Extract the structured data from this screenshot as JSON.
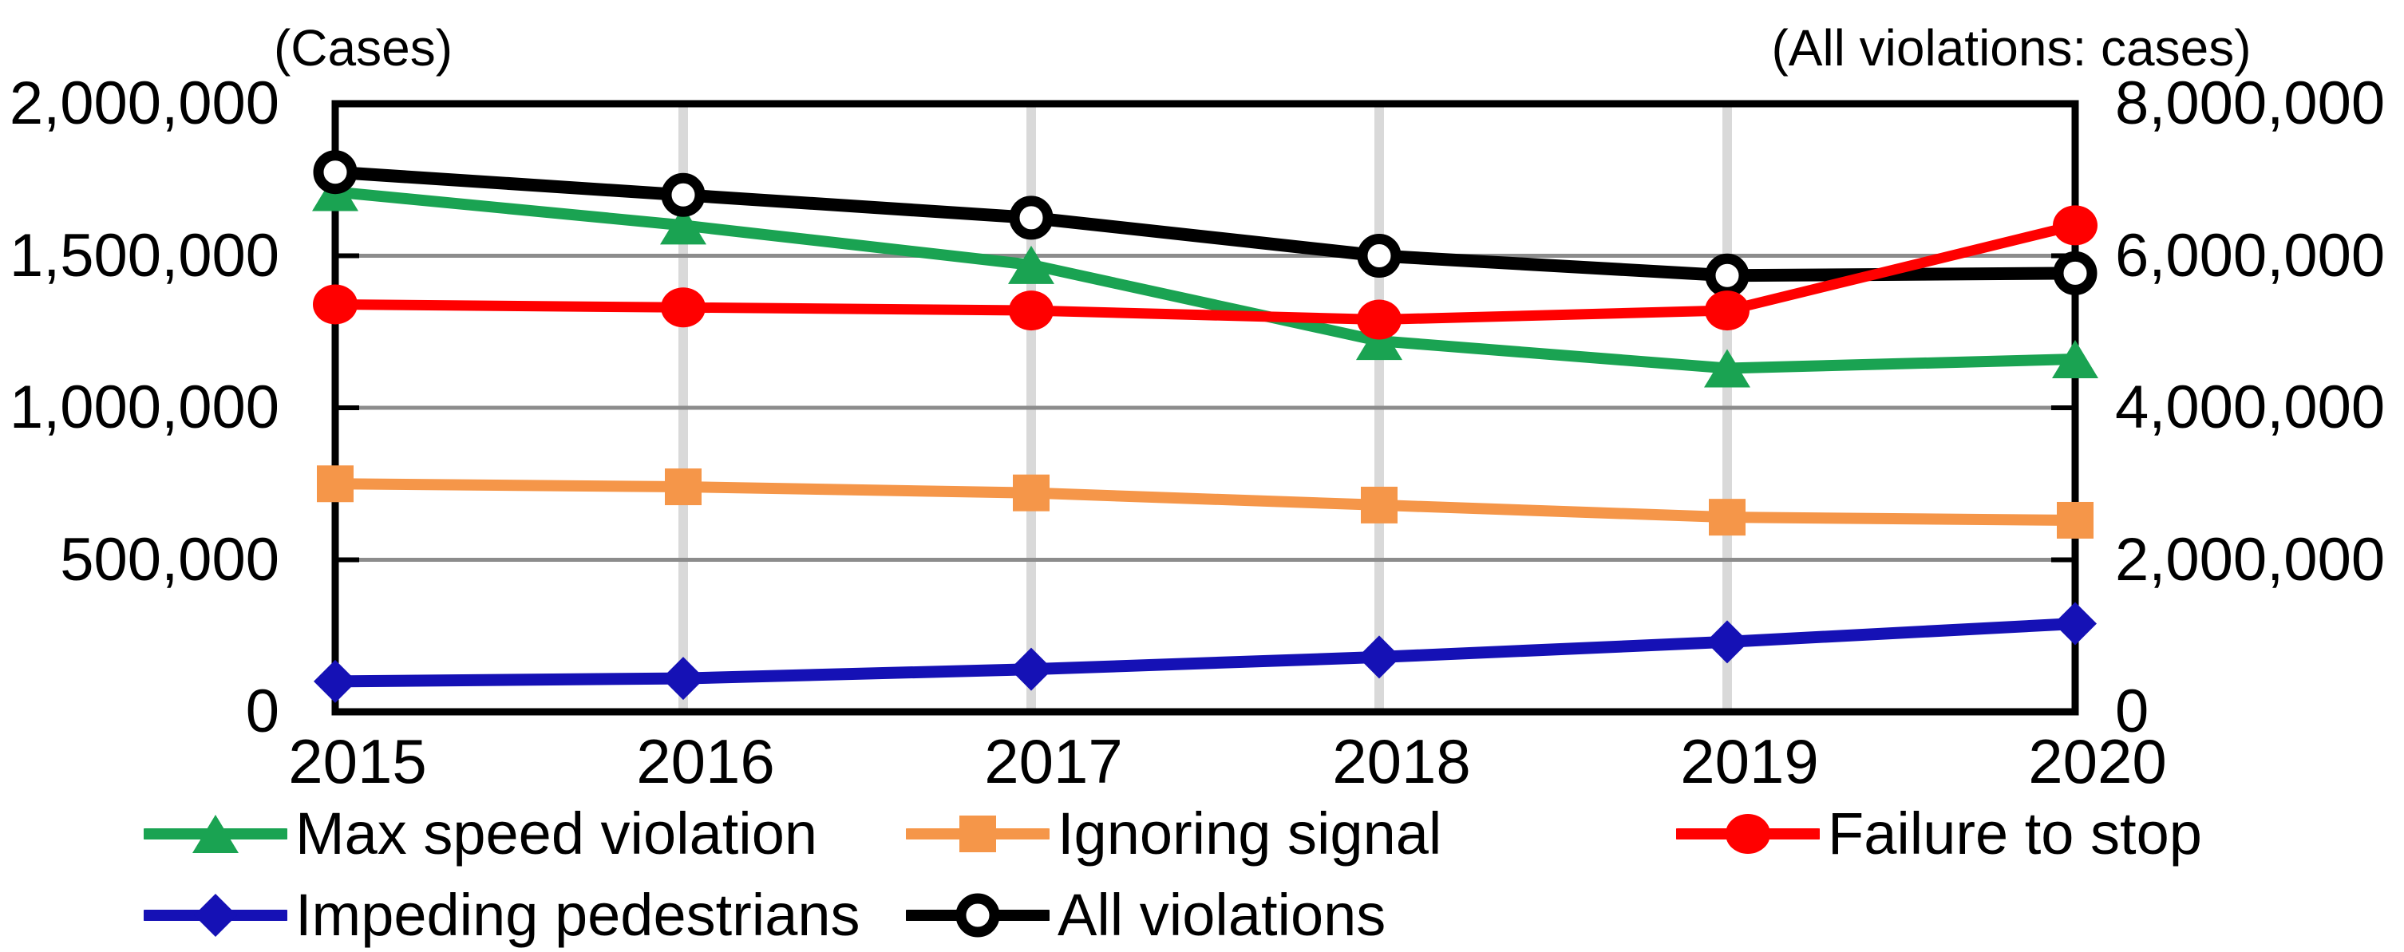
{
  "chart_data": {
    "type": "line",
    "categories": [
      "2015",
      "2016",
      "2017",
      "2018",
      "2019",
      "2020"
    ],
    "left_axis": {
      "title": "(Cases)",
      "min": 0,
      "max": 2000000,
      "tick_interval": 500000,
      "tick_labels": [
        "2,000,000",
        "1,500,000",
        "1,000,000",
        "500,000",
        "0"
      ]
    },
    "right_axis": {
      "title": "(All violations: cases)",
      "min": 0,
      "max": 8000000,
      "tick_interval": 2000000,
      "tick_labels": [
        "8,000,000",
        "6,000,000",
        "4,000,000",
        "2,000,000",
        "0"
      ]
    },
    "series": [
      {
        "name": "Max speed violation",
        "axis": "left",
        "color": "#1AA352",
        "marker": "triangle",
        "values": [
          1710000,
          1600000,
          1470000,
          1220000,
          1130000,
          1160000
        ]
      },
      {
        "name": "Ignoring signal",
        "axis": "left",
        "color": "#F59649",
        "marker": "square",
        "values": [
          750000,
          740000,
          720000,
          680000,
          640000,
          630000
        ]
      },
      {
        "name": "Failure to stop",
        "axis": "left",
        "color": "#FF0000",
        "marker": "circle",
        "values": [
          1340000,
          1330000,
          1320000,
          1290000,
          1320000,
          1600000
        ]
      },
      {
        "name": "Impeding pedestrians",
        "axis": "left",
        "color": "#1511B5",
        "marker": "diamond",
        "values": [
          100000,
          110000,
          140000,
          180000,
          230000,
          290000
        ]
      },
      {
        "name": "All violations",
        "axis": "right",
        "color": "#000000",
        "marker": "ring",
        "values": [
          7100000,
          6800000,
          6500000,
          6000000,
          5740000,
          5770000
        ]
      }
    ],
    "grid": {
      "horizontal": true,
      "vertical": true,
      "horizontal_color": "#8C8C8C",
      "vertical_color": "#D9D9D9"
    },
    "legend": {
      "position": "bottom",
      "rows": [
        [
          "Max speed violation",
          "Ignoring signal",
          "Failure to stop"
        ],
        [
          "Impeding pedestrians",
          "All violations"
        ]
      ]
    }
  }
}
